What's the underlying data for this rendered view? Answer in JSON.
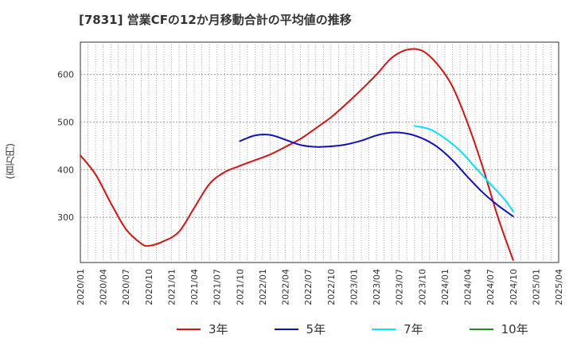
{
  "chart_data": {
    "type": "line",
    "title": "[7831]  営業CFの12か月移動合計の平均値の推移",
    "ylabel": "(百万円)",
    "xlabel": "",
    "ylim": [
      205,
      668
    ],
    "y_ticks": [
      300,
      400,
      500,
      600
    ],
    "x_tick_labels": [
      "2020/01",
      "2020/04",
      "2020/07",
      "2020/10",
      "2021/01",
      "2021/04",
      "2021/07",
      "2021/10",
      "2022/01",
      "2022/04",
      "2022/07",
      "2022/10",
      "2023/01",
      "2023/04",
      "2023/07",
      "2023/10",
      "2024/01",
      "2024/04",
      "2024/07",
      "2024/10",
      "2025/01",
      "2025/04"
    ],
    "x_range": [
      "2020/01",
      "2025/04"
    ],
    "grid": true,
    "legend_position": "bottom",
    "series": [
      {
        "name": "3年",
        "color": "#dd1111",
        "points": [
          [
            "2020/01",
            430
          ],
          [
            "2020/03",
            390
          ],
          [
            "2020/05",
            330
          ],
          [
            "2020/07",
            275
          ],
          [
            "2020/09",
            245
          ],
          [
            "2020/10",
            240
          ],
          [
            "2020/12",
            250
          ],
          [
            "2021/02",
            270
          ],
          [
            "2021/04",
            320
          ],
          [
            "2021/06",
            370
          ],
          [
            "2021/08",
            395
          ],
          [
            "2021/10",
            408
          ],
          [
            "2021/12",
            420
          ],
          [
            "2022/02",
            432
          ],
          [
            "2022/04",
            448
          ],
          [
            "2022/06",
            465
          ],
          [
            "2022/08",
            487
          ],
          [
            "2022/10",
            510
          ],
          [
            "2022/12",
            538
          ],
          [
            "2023/02",
            568
          ],
          [
            "2023/04",
            600
          ],
          [
            "2023/06",
            635
          ],
          [
            "2023/08",
            652
          ],
          [
            "2023/10",
            650
          ],
          [
            "2023/12",
            622
          ],
          [
            "2024/02",
            575
          ],
          [
            "2024/04",
            498
          ],
          [
            "2024/06",
            405
          ],
          [
            "2024/08",
            300
          ],
          [
            "2024/10",
            210
          ]
        ]
      },
      {
        "name": "5年",
        "color": "#1111bb",
        "points": [
          [
            "2021/10",
            460
          ],
          [
            "2021/12",
            472
          ],
          [
            "2022/02",
            473
          ],
          [
            "2022/04",
            463
          ],
          [
            "2022/06",
            452
          ],
          [
            "2022/08",
            448
          ],
          [
            "2022/10",
            449
          ],
          [
            "2022/12",
            453
          ],
          [
            "2023/02",
            461
          ],
          [
            "2023/04",
            472
          ],
          [
            "2023/06",
            478
          ],
          [
            "2023/08",
            476
          ],
          [
            "2023/10",
            466
          ],
          [
            "2023/12",
            448
          ],
          [
            "2024/02",
            420
          ],
          [
            "2024/04",
            385
          ],
          [
            "2024/06",
            352
          ],
          [
            "2024/08",
            325
          ],
          [
            "2024/10",
            302
          ]
        ]
      },
      {
        "name": "7年",
        "color": "#00e5ff",
        "points": [
          [
            "2023/09",
            492
          ],
          [
            "2023/11",
            485
          ],
          [
            "2024/01",
            466
          ],
          [
            "2024/03",
            440
          ],
          [
            "2024/05",
            405
          ],
          [
            "2024/07",
            370
          ],
          [
            "2024/09",
            335
          ],
          [
            "2024/10",
            312
          ]
        ]
      },
      {
        "name": "10年",
        "color": "#228b22",
        "points": []
      }
    ]
  }
}
